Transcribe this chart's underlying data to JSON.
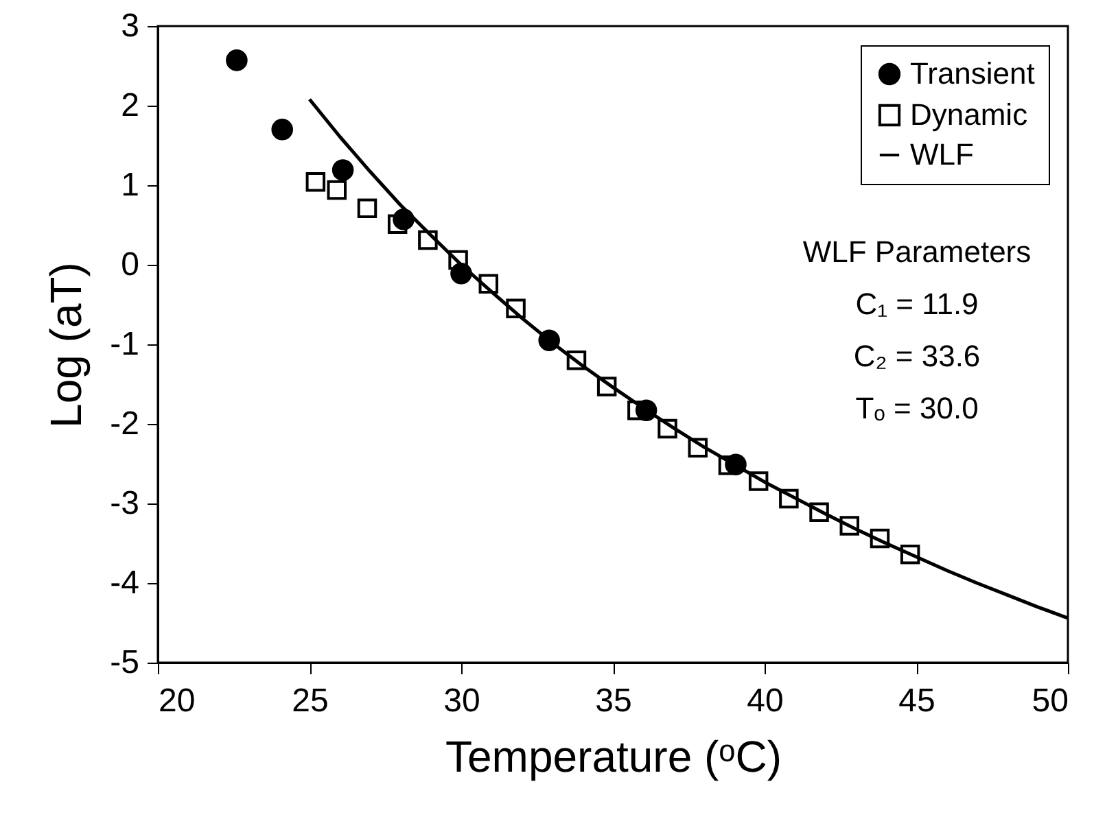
{
  "chart_data": {
    "type": "scatter",
    "xlabel": "Temperature (ᵒC)",
    "ylabel": "Log (aT)",
    "xlim": [
      20,
      50
    ],
    "xticks": [
      20,
      25,
      30,
      35,
      40,
      45,
      50
    ],
    "ylim": [
      -5,
      3
    ],
    "yticks": [
      -5,
      -4,
      -3,
      -2,
      -1,
      0,
      1,
      2,
      3
    ],
    "grid": false,
    "legend": "top right",
    "series": [
      {
        "name": "Transient",
        "color": "#000000",
        "marker": "circle",
        "x": [
          22.6,
          24.1,
          26.1,
          28.1,
          30.0,
          32.9,
          36.1,
          39.05
        ],
        "values": [
          2.57,
          1.7,
          1.19,
          0.57,
          -0.11,
          -0.95,
          -1.83,
          -2.51
        ]
      },
      {
        "name": "Dynamic",
        "color": "#000000",
        "marker": "square",
        "x": [
          25.2,
          25.9,
          26.9,
          27.9,
          28.9,
          29.9,
          30.9,
          31.8,
          33.8,
          34.8,
          35.8,
          36.8,
          37.8,
          38.8,
          39.8,
          40.8,
          41.8,
          42.8,
          43.8,
          44.8
        ],
        "values": [
          1.04,
          0.94,
          0.71,
          0.51,
          0.31,
          0.06,
          -0.24,
          -0.55,
          -1.2,
          -1.53,
          -1.83,
          -2.06,
          -2.3,
          -2.52,
          -2.72,
          -2.94,
          -3.11,
          -3.28,
          -3.44,
          -3.64
        ]
      },
      {
        "name": "WLF",
        "color": "#000000",
        "type": "line",
        "marker": "none",
        "line_style": "solid",
        "x": [
          25,
          26,
          27,
          28,
          29,
          30,
          31,
          32,
          33,
          34,
          35,
          36,
          37,
          38,
          39,
          40,
          41,
          42,
          43,
          44,
          45,
          46,
          47,
          48,
          49,
          50
        ],
        "values": [
          2.08,
          1.61,
          1.17,
          0.75,
          0.37,
          0,
          -0.34,
          -0.67,
          -0.98,
          -1.27,
          -1.54,
          -1.8,
          -2.05,
          -2.29,
          -2.51,
          -2.73,
          -2.93,
          -3.13,
          -3.32,
          -3.5,
          -3.67,
          -3.84,
          -4.0,
          -4.15,
          -4.3,
          -4.44
        ]
      }
    ],
    "annotations": [
      "WLF Parameters",
      "C₁ = 11.9",
      "C₂ = 33.6",
      "Tₒ = 30.0"
    ]
  }
}
